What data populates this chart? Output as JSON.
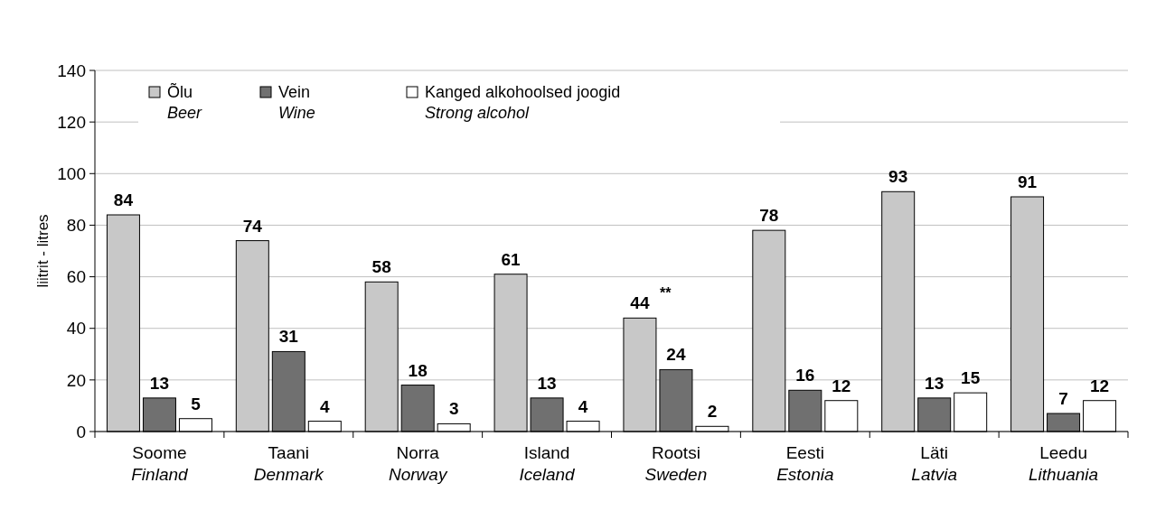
{
  "chart_data": {
    "type": "bar",
    "ylabel": "liitrit - litres",
    "categories": [
      "Soome\nFinland",
      "Taani\nDenmark",
      "Norra\nNorway",
      "Island\nIceland",
      "Rootsi\nSweden",
      "Eesti\nEstonia",
      "Läti\nLatvia",
      "Leedu\nLithuania"
    ],
    "series": [
      {
        "name": "Õlu\nBeer",
        "color": "#c8c8c8",
        "values": [
          84,
          74,
          58,
          61,
          44,
          78,
          93,
          91
        ]
      },
      {
        "name": "Vein\nWine",
        "color": "#707070",
        "values": [
          13,
          31,
          18,
          13,
          24,
          16,
          13,
          7
        ]
      },
      {
        "name": "Kanged alkohoolsed joogid\nStrong alcohol",
        "color": "#ffffff",
        "values": [
          5,
          4,
          3,
          4,
          2,
          12,
          15,
          12
        ]
      }
    ],
    "ylim": [
      0,
      140
    ],
    "yticks": [
      0,
      20,
      40,
      60,
      80,
      100,
      120,
      140
    ],
    "grid": "y",
    "legend": "top left",
    "data_labels": true,
    "annotations": [
      "**"
    ]
  }
}
